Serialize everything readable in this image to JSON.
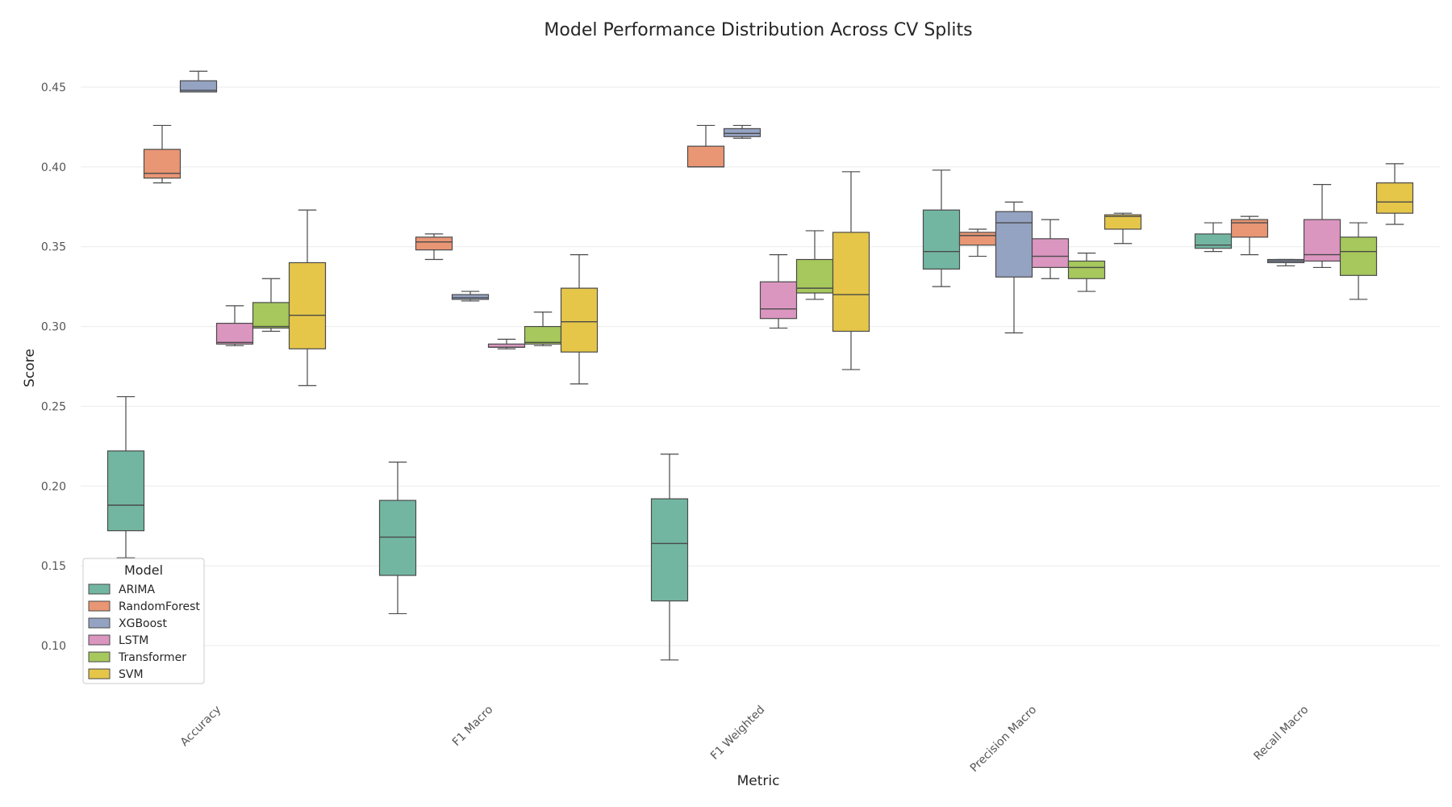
{
  "chart_data": {
    "type": "box",
    "title": "Model Performance Distribution Across CV Splits",
    "xlabel": "Metric",
    "ylabel": "Score",
    "ylim": [
      0.075,
      0.47
    ],
    "yticks": [
      0.1,
      0.15,
      0.2,
      0.25,
      0.3,
      0.35,
      0.4,
      0.45
    ],
    "ytick_labels": [
      "0.10",
      "0.15",
      "0.20",
      "0.25",
      "0.30",
      "0.35",
      "0.40",
      "0.45"
    ],
    "grid": "horizontal",
    "legend_placement": "lower-left",
    "categories": [
      "Accuracy",
      "F1 Macro",
      "F1 Weighted",
      "Precision Macro",
      "Recall Macro"
    ],
    "legend": {
      "title": "Model"
    },
    "series": [
      {
        "name": "ARIMA",
        "color": "#72b6a1",
        "boxes": [
          {
            "min": 0.155,
            "q1": 0.172,
            "median": 0.188,
            "q3": 0.222,
            "max": 0.256
          },
          {
            "min": 0.12,
            "q1": 0.144,
            "median": 0.168,
            "q3": 0.191,
            "max": 0.215
          },
          {
            "min": 0.091,
            "q1": 0.128,
            "median": 0.164,
            "q3": 0.192,
            "max": 0.22
          },
          {
            "min": 0.325,
            "q1": 0.336,
            "median": 0.347,
            "q3": 0.373,
            "max": 0.398
          },
          {
            "min": 0.347,
            "q1": 0.349,
            "median": 0.351,
            "q3": 0.358,
            "max": 0.365
          }
        ]
      },
      {
        "name": "RandomForest",
        "color": "#e99675",
        "boxes": [
          {
            "min": 0.39,
            "q1": 0.393,
            "median": 0.396,
            "q3": 0.411,
            "max": 0.426
          },
          {
            "min": 0.342,
            "q1": 0.348,
            "median": 0.353,
            "q3": 0.356,
            "max": 0.358
          },
          {
            "min": 0.4,
            "q1": 0.4,
            "median": 0.4,
            "q3": 0.413,
            "max": 0.426
          },
          {
            "min": 0.344,
            "q1": 0.351,
            "median": 0.357,
            "q3": 0.359,
            "max": 0.361
          },
          {
            "min": 0.345,
            "q1": 0.356,
            "median": 0.365,
            "q3": 0.367,
            "max": 0.369
          }
        ]
      },
      {
        "name": "XGBoost",
        "color": "#95a3c3",
        "boxes": [
          {
            "min": 0.447,
            "q1": 0.447,
            "median": 0.448,
            "q3": 0.454,
            "max": 0.46
          },
          {
            "min": 0.316,
            "q1": 0.317,
            "median": 0.318,
            "q3": 0.32,
            "max": 0.322
          },
          {
            "min": 0.418,
            "q1": 0.419,
            "median": 0.421,
            "q3": 0.424,
            "max": 0.426
          },
          {
            "min": 0.296,
            "q1": 0.331,
            "median": 0.365,
            "q3": 0.372,
            "max": 0.378
          },
          {
            "min": 0.338,
            "q1": 0.34,
            "median": 0.341,
            "q3": 0.342,
            "max": 0.342
          }
        ]
      },
      {
        "name": "LSTM",
        "color": "#db96c0",
        "boxes": [
          {
            "min": 0.288,
            "q1": 0.289,
            "median": 0.29,
            "q3": 0.302,
            "max": 0.313
          },
          {
            "min": 0.286,
            "q1": 0.287,
            "median": 0.287,
            "q3": 0.289,
            "max": 0.292
          },
          {
            "min": 0.299,
            "q1": 0.305,
            "median": 0.311,
            "q3": 0.328,
            "max": 0.345
          },
          {
            "min": 0.33,
            "q1": 0.337,
            "median": 0.344,
            "q3": 0.355,
            "max": 0.367
          },
          {
            "min": 0.337,
            "q1": 0.341,
            "median": 0.345,
            "q3": 0.367,
            "max": 0.389
          }
        ]
      },
      {
        "name": "Transformer",
        "color": "#a6c85c",
        "boxes": [
          {
            "min": 0.297,
            "q1": 0.299,
            "median": 0.3,
            "q3": 0.315,
            "max": 0.33
          },
          {
            "min": 0.288,
            "q1": 0.289,
            "median": 0.29,
            "q3": 0.3,
            "max": 0.309
          },
          {
            "min": 0.317,
            "q1": 0.321,
            "median": 0.324,
            "q3": 0.342,
            "max": 0.36
          },
          {
            "min": 0.322,
            "q1": 0.33,
            "median": 0.337,
            "q3": 0.341,
            "max": 0.346
          },
          {
            "min": 0.317,
            "q1": 0.332,
            "median": 0.347,
            "q3": 0.356,
            "max": 0.365
          }
        ]
      },
      {
        "name": "SVM",
        "color": "#e5c649",
        "boxes": [
          {
            "min": 0.263,
            "q1": 0.286,
            "median": 0.307,
            "q3": 0.34,
            "max": 0.373
          },
          {
            "min": 0.264,
            "q1": 0.284,
            "median": 0.303,
            "q3": 0.324,
            "max": 0.345
          },
          {
            "min": 0.273,
            "q1": 0.297,
            "median": 0.32,
            "q3": 0.359,
            "max": 0.397
          },
          {
            "min": 0.352,
            "q1": 0.361,
            "median": 0.369,
            "q3": 0.37,
            "max": 0.371
          },
          {
            "min": 0.364,
            "q1": 0.371,
            "median": 0.378,
            "q3": 0.39,
            "max": 0.402
          }
        ]
      }
    ]
  }
}
